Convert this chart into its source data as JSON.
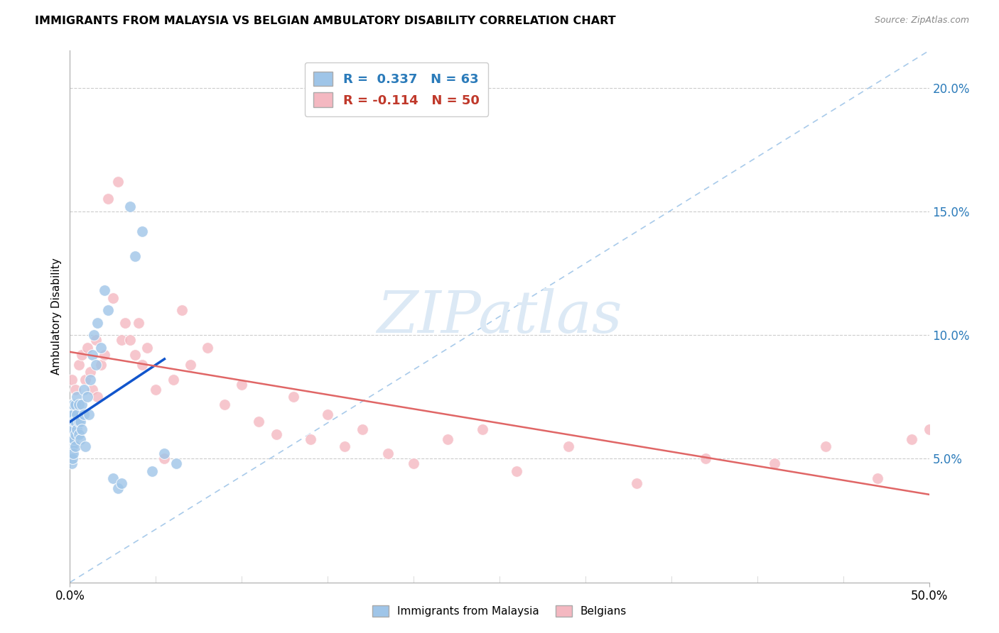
{
  "title": "IMMIGRANTS FROM MALAYSIA VS BELGIAN AMBULATORY DISABILITY CORRELATION CHART",
  "source": "Source: ZipAtlas.com",
  "ylabel": "Ambulatory Disability",
  "right_yticks": [
    "5.0%",
    "10.0%",
    "15.0%",
    "20.0%"
  ],
  "right_ytick_vals": [
    0.05,
    0.1,
    0.15,
    0.2
  ],
  "xmin": 0.0,
  "xmax": 0.5,
  "ymin": 0.0,
  "ymax": 0.215,
  "blue_color": "#9fc5e8",
  "pink_color": "#f4b8c1",
  "blue_line_color": "#1155cc",
  "pink_line_color": "#e06666",
  "diag_color": "#9fc5e8",
  "watermark_color": "#dce9f5",
  "blue_scatter_x": [
    0.0005,
    0.0005,
    0.0005,
    0.0005,
    0.0008,
    0.0008,
    0.0008,
    0.001,
    0.001,
    0.001,
    0.001,
    0.001,
    0.001,
    0.001,
    0.001,
    0.001,
    0.0015,
    0.0015,
    0.0015,
    0.0015,
    0.002,
    0.002,
    0.002,
    0.002,
    0.002,
    0.0025,
    0.0025,
    0.003,
    0.003,
    0.003,
    0.003,
    0.004,
    0.004,
    0.004,
    0.005,
    0.005,
    0.005,
    0.006,
    0.006,
    0.007,
    0.007,
    0.008,
    0.008,
    0.009,
    0.01,
    0.011,
    0.012,
    0.013,
    0.014,
    0.015,
    0.016,
    0.018,
    0.02,
    0.022,
    0.025,
    0.028,
    0.03,
    0.035,
    0.038,
    0.042,
    0.048,
    0.055,
    0.062
  ],
  "blue_scatter_y": [
    0.055,
    0.06,
    0.065,
    0.07,
    0.058,
    0.062,
    0.068,
    0.048,
    0.052,
    0.055,
    0.058,
    0.06,
    0.062,
    0.065,
    0.068,
    0.072,
    0.05,
    0.055,
    0.062,
    0.068,
    0.052,
    0.058,
    0.062,
    0.068,
    0.072,
    0.058,
    0.065,
    0.055,
    0.06,
    0.065,
    0.072,
    0.062,
    0.068,
    0.075,
    0.06,
    0.065,
    0.072,
    0.058,
    0.065,
    0.062,
    0.072,
    0.068,
    0.078,
    0.055,
    0.075,
    0.068,
    0.082,
    0.092,
    0.1,
    0.088,
    0.105,
    0.095,
    0.118,
    0.11,
    0.042,
    0.038,
    0.04,
    0.152,
    0.132,
    0.142,
    0.045,
    0.052,
    0.048
  ],
  "pink_scatter_x": [
    0.001,
    0.003,
    0.005,
    0.007,
    0.009,
    0.01,
    0.012,
    0.013,
    0.015,
    0.016,
    0.018,
    0.02,
    0.022,
    0.025,
    0.028,
    0.03,
    0.032,
    0.035,
    0.038,
    0.04,
    0.042,
    0.045,
    0.05,
    0.055,
    0.06,
    0.065,
    0.07,
    0.08,
    0.09,
    0.1,
    0.11,
    0.12,
    0.13,
    0.14,
    0.15,
    0.16,
    0.17,
    0.185,
    0.2,
    0.22,
    0.24,
    0.26,
    0.29,
    0.33,
    0.37,
    0.41,
    0.44,
    0.47,
    0.49,
    0.5
  ],
  "pink_scatter_y": [
    0.082,
    0.078,
    0.088,
    0.092,
    0.082,
    0.095,
    0.085,
    0.078,
    0.098,
    0.075,
    0.088,
    0.092,
    0.155,
    0.115,
    0.162,
    0.098,
    0.105,
    0.098,
    0.092,
    0.105,
    0.088,
    0.095,
    0.078,
    0.05,
    0.082,
    0.11,
    0.088,
    0.095,
    0.072,
    0.08,
    0.065,
    0.06,
    0.075,
    0.058,
    0.068,
    0.055,
    0.062,
    0.052,
    0.048,
    0.058,
    0.062,
    0.045,
    0.055,
    0.04,
    0.05,
    0.048,
    0.055,
    0.042,
    0.058,
    0.062
  ],
  "blue_R": 0.337,
  "blue_N": 63,
  "pink_R": -0.114,
  "pink_N": 50
}
